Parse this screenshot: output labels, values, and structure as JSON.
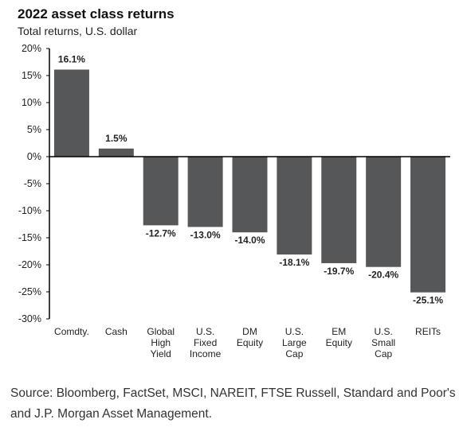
{
  "chart_data": {
    "type": "bar",
    "title": "2022 asset class returns",
    "subtitle": "Total returns, U.S. dollar",
    "categories": [
      [
        "Comdty."
      ],
      [
        "Cash"
      ],
      [
        "Global",
        "High",
        "Yield"
      ],
      [
        "U.S.",
        "Fixed",
        "Income"
      ],
      [
        "DM",
        "Equity"
      ],
      [
        "U.S.",
        "Large",
        "Cap"
      ],
      [
        "EM",
        "Equity"
      ],
      [
        "U.S.",
        "Small",
        "Cap"
      ],
      [
        "REITs"
      ]
    ],
    "values": [
      16.1,
      1.5,
      -12.7,
      -13.0,
      -14.0,
      -18.1,
      -19.7,
      -20.4,
      -25.1
    ],
    "data_labels": [
      "16.1%",
      "1.5%",
      "-12.7%",
      "-13.0%",
      "-14.0%",
      "-18.1%",
      "-19.7%",
      "-20.4%",
      "-25.1%"
    ],
    "yticks": [
      20,
      15,
      10,
      5,
      0,
      -5,
      -10,
      -15,
      -20,
      -25,
      -30
    ],
    "ytick_labels": [
      "20%",
      "15%",
      "10%",
      "5%",
      "0%",
      "-5%",
      "-10%",
      "-15%",
      "-20%",
      "-25%",
      "-30%"
    ],
    "ylim": [
      -30,
      20
    ],
    "xlabel": "",
    "ylabel": "",
    "grid": false,
    "bar_color": "#555759",
    "axis_color": "#000000"
  },
  "source": "Source: Bloomberg, FactSet, MSCI, NAREIT, FTSE Russell, Standard and Poor's and J.P. Morgan Asset Management."
}
